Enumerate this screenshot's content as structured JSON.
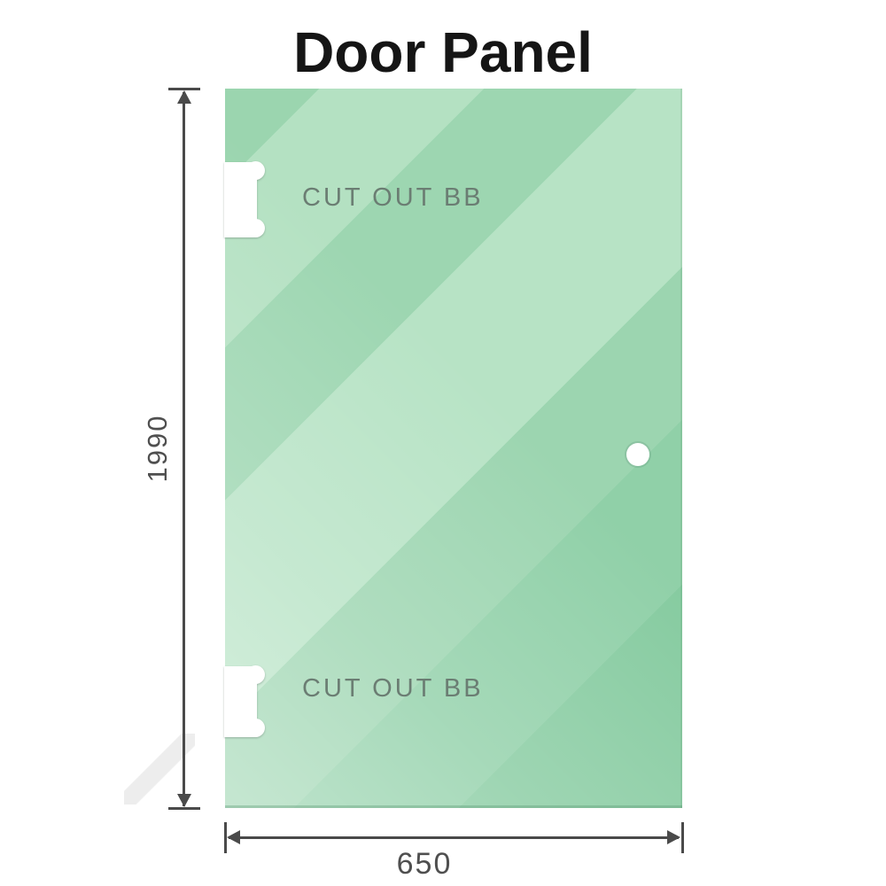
{
  "title": "Door Panel",
  "panel": {
    "height_dimension": "1990",
    "width_dimension": "650",
    "cutouts": [
      {
        "position": "top-left",
        "label": "CUT OUT BB"
      },
      {
        "position": "bottom-left",
        "label": "CUT OUT BB"
      }
    ],
    "holes": [
      {
        "name": "handle-hole",
        "position": "right-middle"
      }
    ]
  },
  "colors": {
    "glass-base": "#9dd6b1",
    "glass-light": "#b7e3c5",
    "glass-dark": "#86cba0",
    "dimension-line": "#4a4a4a",
    "cutout-label": "#6b7d73",
    "title": "#151515",
    "page-bg": "#ffffff"
  }
}
